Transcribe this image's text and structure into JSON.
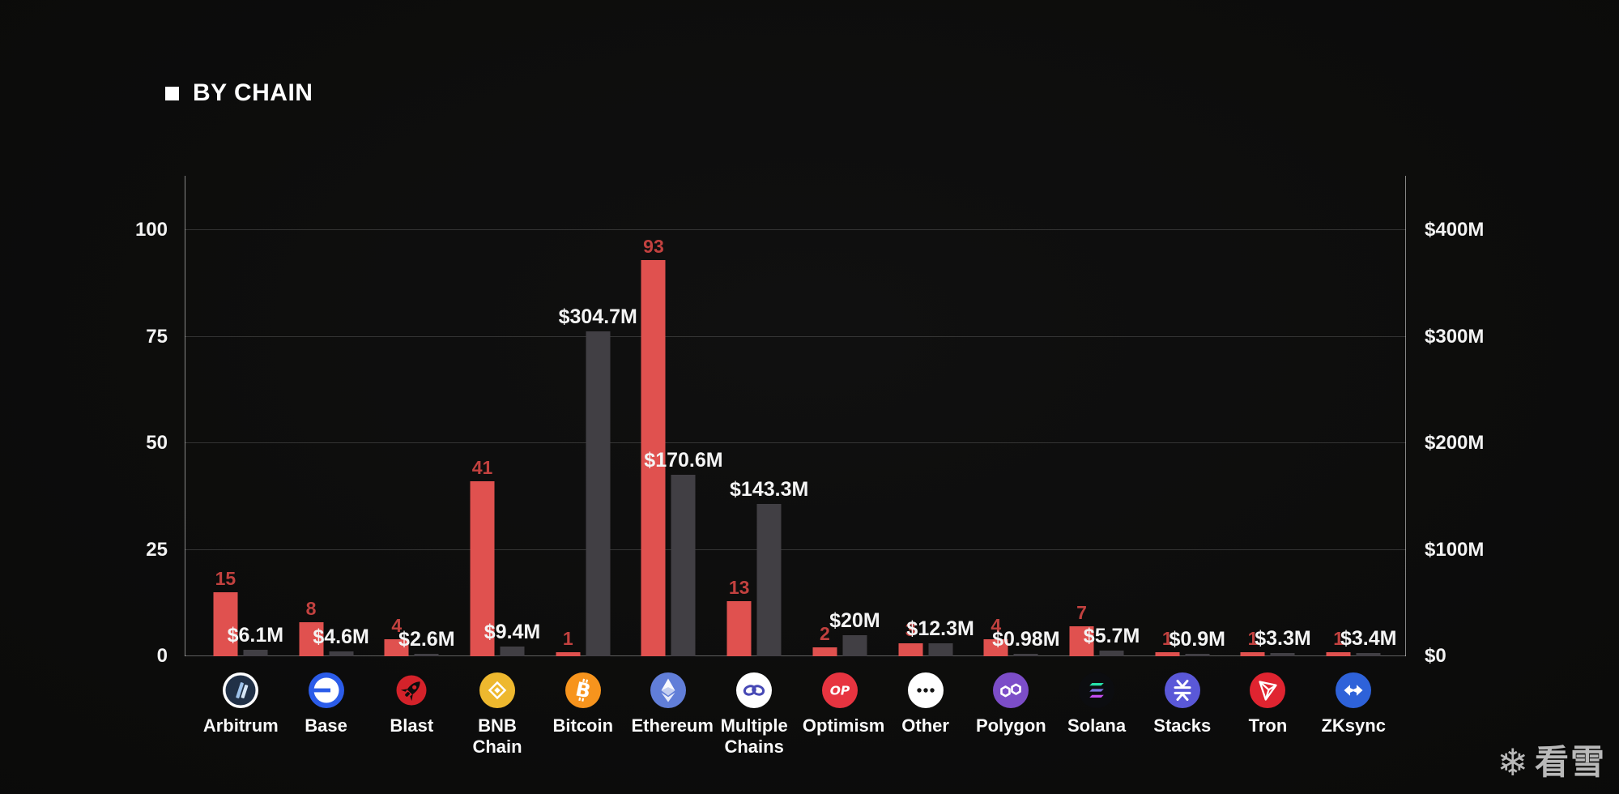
{
  "title": {
    "text": "BY CHAIN"
  },
  "watermark": {
    "snowflake": "❄",
    "text": "看雪"
  },
  "colors": {
    "background": "#0b0b0a",
    "bar_red": "#e0514f",
    "bar_gray": "#413f44",
    "count_label": "#c2413f",
    "value_label": "#f4f4f4",
    "axis_text": "#f2f2f2"
  },
  "chart_data": {
    "type": "bar",
    "title": "BY CHAIN",
    "grid": "horizontal",
    "legend": "none",
    "categories": [
      "Arbitrum",
      "Base",
      "Blast",
      "BNB Chain",
      "Bitcoin",
      "Ethereum",
      "Multiple Chains",
      "Optimism",
      "Other",
      "Polygon",
      "Solana",
      "Stacks",
      "Tron",
      "ZKsync"
    ],
    "series": [
      {
        "name": "count",
        "axis": "left",
        "color": "#e0514f",
        "values": [
          15,
          8,
          4,
          41,
          1,
          93,
          13,
          2,
          3,
          4,
          7,
          1,
          1,
          1
        ],
        "labels": [
          "15",
          "8",
          "4",
          "41",
          "1",
          "93",
          "13",
          "2",
          "3",
          "4",
          "7",
          "1",
          "1",
          "1"
        ]
      },
      {
        "name": "amount_usd",
        "axis": "right",
        "color": "#413f44",
        "values_musd": [
          6.1,
          4.6,
          2.6,
          9.4,
          304.7,
          170.6,
          143.3,
          20,
          12.3,
          0.98,
          5.7,
          0.9,
          3.3,
          3.4
        ],
        "labels": [
          "$6.1M",
          "$4.6M",
          "$2.6M",
          "$9.4M",
          "$304.7M",
          "$170.6M",
          "$143.3M",
          "$20M",
          "$12.3M",
          "$0.98M",
          "$5.7M",
          "$0.9M",
          "$3.3M",
          "$3.4M"
        ]
      }
    ],
    "left_axis": {
      "tick_values": [
        100,
        75,
        50,
        25,
        0
      ],
      "tick_labels": [
        "100",
        "75",
        "50",
        "25",
        "0"
      ],
      "range_visible": [
        0,
        112.7
      ]
    },
    "right_axis": {
      "tick_labels": [
        "$400M",
        "$300M",
        "$200M",
        "$100M",
        "$0"
      ],
      "musd_at_100": 400
    }
  },
  "chains_meta": [
    {
      "chain": "Arbitrum",
      "key": "arbitrum",
      "icon": "arbitrum-icon",
      "icon_bg": "#ffffff"
    },
    {
      "chain": "Base",
      "key": "base",
      "icon": "base-icon",
      "icon_bg": "#2b5ce9"
    },
    {
      "chain": "Blast",
      "key": "blast",
      "icon": "blast-icon",
      "icon_bg": "#d4222a"
    },
    {
      "chain": "BNB Chain",
      "key": "bnb",
      "icon": "bnb-chain-icon",
      "icon_bg": "#eeb82e"
    },
    {
      "chain": "Bitcoin",
      "key": "bitcoin",
      "icon": "bitcoin-icon",
      "icon_bg": "#f7941d"
    },
    {
      "chain": "Ethereum",
      "key": "ethereum",
      "icon": "ethereum-icon",
      "icon_bg": "#617ed8"
    },
    {
      "chain": "Multiple Chains",
      "key": "multiple",
      "icon": "multiple-chains-icon",
      "icon_bg": "#ffffff"
    },
    {
      "chain": "Optimism",
      "key": "optimism",
      "icon": "optimism-icon",
      "icon_bg": "#e73440"
    },
    {
      "chain": "Other",
      "key": "other",
      "icon": "other-icon",
      "icon_bg": "#ffffff"
    },
    {
      "chain": "Polygon",
      "key": "polygon",
      "icon": "polygon-icon",
      "icon_bg": "#7c4dc8"
    },
    {
      "chain": "Solana",
      "key": "solana",
      "icon": "solana-icon",
      "icon_bg": "#0c0d10"
    },
    {
      "chain": "Stacks",
      "key": "stacks",
      "icon": "stacks-icon",
      "icon_bg": "#5a58d8"
    },
    {
      "chain": "Tron",
      "key": "tron",
      "icon": "tron-icon",
      "icon_bg": "#e02430"
    },
    {
      "chain": "ZKsync",
      "key": "zksync",
      "icon": "zksync-icon",
      "icon_bg": "#2e62d9"
    }
  ]
}
